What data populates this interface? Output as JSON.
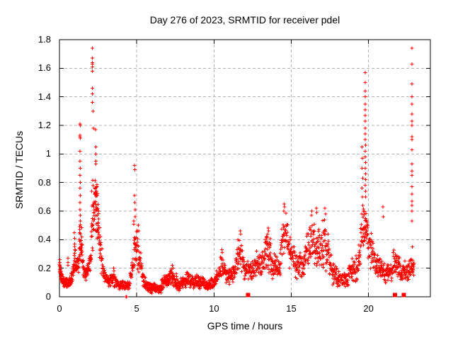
{
  "chart_data": {
    "type": "scatter",
    "title": "Day 276 of 2023, SRMTID for receiver pdel",
    "xlabel": "GPS time / hours",
    "ylabel": "SRMTID / TECUs",
    "xlim": [
      0,
      24
    ],
    "ylim": [
      0,
      1.8
    ],
    "xticks": [
      0,
      5,
      10,
      15,
      20
    ],
    "xtick_labels": [
      "0",
      "5",
      "10",
      "15",
      "20"
    ],
    "yticks": [
      0,
      0.2,
      0.4,
      0.6,
      0.8,
      1.0,
      1.2,
      1.4,
      1.6,
      1.8
    ],
    "ytick_labels": [
      "0",
      "0.2",
      "0.4",
      "0.6",
      "0.8",
      "1",
      "1.2",
      "1.4",
      "1.6",
      "1.8"
    ],
    "grid": true,
    "legend_position": "none",
    "marker": "plus",
    "marker_color": "#ff0000",
    "axis_color": "#000000",
    "grid_color": "#b3b3b3",
    "background_color": "#ffffff",
    "key_points": [
      [
        0.02,
        0.26
      ],
      [
        0.03,
        0.24
      ],
      [
        0.02,
        0.22
      ],
      [
        0.55,
        0.27
      ],
      [
        0.56,
        0.24
      ],
      [
        0.54,
        0.22
      ],
      [
        0.97,
        0.45
      ],
      [
        0.98,
        0.41
      ],
      [
        0.99,
        0.37
      ],
      [
        1.0,
        0.33
      ],
      [
        0.97,
        0.29
      ],
      [
        1.01,
        0.27
      ],
      [
        1.33,
        1.21
      ],
      [
        1.345,
        1.2
      ],
      [
        1.335,
        1.13
      ],
      [
        1.33,
        1.12
      ],
      [
        1.34,
        1.11
      ],
      [
        1.335,
        1.02
      ],
      [
        1.33,
        0.95
      ],
      [
        1.34,
        0.9
      ],
      [
        1.335,
        0.85
      ],
      [
        1.34,
        0.8
      ],
      [
        1.33,
        0.76
      ],
      [
        1.34,
        0.71
      ],
      [
        1.335,
        0.66
      ],
      [
        1.33,
        0.61
      ],
      [
        1.34,
        0.57
      ],
      [
        1.345,
        0.53
      ],
      [
        1.31,
        0.47
      ],
      [
        1.36,
        0.44
      ],
      [
        2.12,
        1.74
      ],
      [
        2.13,
        1.67
      ],
      [
        2.125,
        1.64
      ],
      [
        2.135,
        1.63
      ],
      [
        2.12,
        1.61
      ],
      [
        2.13,
        1.58
      ],
      [
        2.14,
        1.46
      ],
      [
        2.13,
        1.42
      ],
      [
        2.12,
        1.36
      ],
      [
        2.17,
        1.3
      ],
      [
        2.2,
        1.18
      ],
      [
        2.34,
        1.17
      ],
      [
        2.35,
        1.05
      ],
      [
        2.36,
        1.0
      ],
      [
        2.35,
        0.95
      ],
      [
        2.37,
        0.93
      ],
      [
        3.5,
        0.2
      ],
      [
        3.52,
        0.18
      ],
      [
        4.3,
        0.0
      ],
      [
        4.35,
        0.0
      ],
      [
        4.86,
        0.92
      ],
      [
        4.87,
        0.89
      ],
      [
        4.86,
        0.71
      ],
      [
        4.88,
        0.66
      ],
      [
        4.9,
        0.61
      ],
      [
        4.91,
        0.56
      ],
      [
        5.1,
        0.5
      ],
      [
        5.13,
        0.46
      ],
      [
        7.3,
        0.22
      ],
      [
        7.35,
        0.2
      ],
      [
        10.5,
        0.33
      ],
      [
        10.53,
        0.31
      ],
      [
        11.55,
        0.4
      ],
      [
        11.7,
        0.46
      ],
      [
        11.73,
        0.44
      ],
      [
        12.75,
        0.32
      ],
      [
        13.5,
        0.48
      ],
      [
        13.53,
        0.46
      ],
      [
        13.47,
        0.44
      ],
      [
        13.9,
        0.3
      ],
      [
        14.55,
        0.65
      ],
      [
        14.57,
        0.63
      ],
      [
        14.53,
        0.6
      ],
      [
        16.3,
        0.57
      ],
      [
        16.33,
        0.6
      ],
      [
        16.62,
        0.62
      ],
      [
        16.65,
        0.59
      ],
      [
        17.18,
        0.62
      ],
      [
        17.22,
        0.58
      ],
      [
        19.58,
        1.05
      ],
      [
        19.6,
        0.97
      ],
      [
        19.57,
        0.9
      ],
      [
        19.62,
        0.83
      ],
      [
        19.59,
        0.76
      ],
      [
        19.61,
        0.7
      ],
      [
        19.63,
        0.64
      ],
      [
        19.55,
        0.58
      ],
      [
        19.78,
        1.57
      ],
      [
        19.79,
        1.5
      ],
      [
        19.785,
        1.44
      ],
      [
        19.78,
        1.4
      ],
      [
        19.79,
        1.35
      ],
      [
        19.785,
        1.31
      ],
      [
        19.78,
        1.27
      ],
      [
        19.79,
        1.23
      ],
      [
        19.785,
        1.18
      ],
      [
        19.78,
        1.14
      ],
      [
        19.79,
        1.1
      ],
      [
        19.8,
        1.06
      ],
      [
        19.785,
        1.02
      ],
      [
        19.79,
        0.98
      ],
      [
        19.8,
        0.94
      ],
      [
        19.79,
        0.9
      ],
      [
        19.8,
        0.86
      ],
      [
        19.81,
        0.82
      ],
      [
        19.79,
        0.78
      ],
      [
        19.8,
        0.74
      ],
      [
        19.81,
        0.7
      ],
      [
        20.92,
        0.63
      ],
      [
        20.95,
        0.56
      ],
      [
        22.8,
        1.74
      ],
      [
        22.81,
        1.63
      ],
      [
        22.8,
        1.49
      ],
      [
        22.81,
        1.4
      ],
      [
        22.8,
        1.35
      ],
      [
        22.81,
        1.28
      ],
      [
        22.8,
        1.23
      ],
      [
        22.815,
        1.2
      ],
      [
        22.8,
        1.12
      ],
      [
        22.81,
        1.1
      ],
      [
        22.8,
        1.03
      ],
      [
        22.81,
        0.93
      ],
      [
        22.8,
        0.88
      ],
      [
        22.82,
        0.85
      ],
      [
        22.8,
        0.77
      ],
      [
        22.81,
        0.72
      ],
      [
        22.8,
        0.67
      ],
      [
        22.82,
        0.64
      ],
      [
        22.8,
        0.6
      ],
      [
        22.81,
        0.53
      ],
      [
        22.83,
        0.35
      ]
    ],
    "zero_axis_squares_hours": [
      12.2,
      21.72,
      22.28
    ],
    "bands_format": "[t_start,t_end,count,y_lo_at_start,y_hi_at_start,y_lo_at_end,y_hi_at_end]",
    "bands": [
      [
        0.0,
        0.15,
        22,
        0.14,
        0.27,
        0.1,
        0.2
      ],
      [
        0.15,
        0.45,
        40,
        0.06,
        0.16,
        0.06,
        0.13
      ],
      [
        0.45,
        0.75,
        35,
        0.06,
        0.14,
        0.07,
        0.15
      ],
      [
        0.75,
        0.95,
        24,
        0.08,
        0.16,
        0.12,
        0.28
      ],
      [
        0.95,
        1.1,
        18,
        0.12,
        0.4,
        0.14,
        0.3
      ],
      [
        1.1,
        1.28,
        16,
        0.12,
        0.26,
        0.16,
        0.38
      ],
      [
        1.28,
        1.48,
        30,
        0.22,
        0.55,
        0.22,
        0.48
      ],
      [
        1.48,
        1.75,
        25,
        0.12,
        0.35,
        0.1,
        0.2
      ],
      [
        1.75,
        2.05,
        28,
        0.1,
        0.2,
        0.16,
        0.4
      ],
      [
        2.05,
        2.3,
        32,
        0.25,
        0.75,
        0.4,
        0.95
      ],
      [
        2.3,
        2.55,
        46,
        0.35,
        0.92,
        0.3,
        0.75
      ],
      [
        2.55,
        2.8,
        26,
        0.18,
        0.55,
        0.14,
        0.32
      ],
      [
        2.8,
        3.1,
        28,
        0.09,
        0.26,
        0.07,
        0.16
      ],
      [
        3.1,
        3.45,
        32,
        0.06,
        0.14,
        0.07,
        0.2
      ],
      [
        3.45,
        3.8,
        32,
        0.06,
        0.19,
        0.05,
        0.13
      ],
      [
        3.8,
        4.55,
        65,
        0.04,
        0.12,
        0.04,
        0.12
      ],
      [
        4.55,
        4.8,
        20,
        0.06,
        0.16,
        0.14,
        0.35
      ],
      [
        4.8,
        5.05,
        30,
        0.18,
        0.55,
        0.2,
        0.5
      ],
      [
        5.05,
        5.35,
        26,
        0.14,
        0.5,
        0.1,
        0.26
      ],
      [
        5.35,
        5.7,
        30,
        0.06,
        0.22,
        0.04,
        0.12
      ],
      [
        5.7,
        6.6,
        88,
        0.02,
        0.1,
        0.02,
        0.09
      ],
      [
        6.6,
        7.1,
        48,
        0.04,
        0.13,
        0.08,
        0.21
      ],
      [
        7.1,
        7.6,
        48,
        0.07,
        0.22,
        0.05,
        0.16
      ],
      [
        7.6,
        8.2,
        56,
        0.04,
        0.13,
        0.05,
        0.15
      ],
      [
        8.2,
        9.0,
        72,
        0.06,
        0.19,
        0.05,
        0.17
      ],
      [
        9.0,
        9.6,
        52,
        0.05,
        0.16,
        0.04,
        0.12
      ],
      [
        9.6,
        10.15,
        48,
        0.04,
        0.12,
        0.06,
        0.17
      ],
      [
        10.15,
        10.5,
        28,
        0.08,
        0.18,
        0.1,
        0.32
      ],
      [
        10.5,
        10.85,
        28,
        0.1,
        0.32,
        0.08,
        0.2
      ],
      [
        10.85,
        11.4,
        46,
        0.08,
        0.22,
        0.1,
        0.24
      ],
      [
        11.4,
        11.7,
        24,
        0.12,
        0.32,
        0.15,
        0.45
      ],
      [
        11.7,
        11.95,
        20,
        0.15,
        0.45,
        0.12,
        0.3
      ],
      [
        11.95,
        12.45,
        40,
        0.08,
        0.28,
        0.1,
        0.24
      ],
      [
        12.45,
        13.25,
        62,
        0.1,
        0.26,
        0.14,
        0.34
      ],
      [
        13.25,
        13.7,
        40,
        0.15,
        0.47,
        0.15,
        0.42
      ],
      [
        13.7,
        14.3,
        50,
        0.12,
        0.32,
        0.14,
        0.27
      ],
      [
        14.3,
        14.75,
        36,
        0.18,
        0.5,
        0.3,
        0.64
      ],
      [
        14.75,
        15.25,
        40,
        0.18,
        0.55,
        0.15,
        0.35
      ],
      [
        15.25,
        15.85,
        48,
        0.12,
        0.3,
        0.13,
        0.32
      ],
      [
        15.85,
        16.5,
        54,
        0.15,
        0.42,
        0.25,
        0.62
      ],
      [
        16.5,
        17.0,
        44,
        0.15,
        0.58,
        0.18,
        0.45
      ],
      [
        17.0,
        17.45,
        38,
        0.15,
        0.6,
        0.12,
        0.5
      ],
      [
        17.45,
        18.0,
        44,
        0.08,
        0.35,
        0.06,
        0.2
      ],
      [
        18.0,
        18.7,
        56,
        0.05,
        0.18,
        0.06,
        0.18
      ],
      [
        18.7,
        19.3,
        48,
        0.08,
        0.26,
        0.1,
        0.32
      ],
      [
        19.3,
        19.65,
        28,
        0.12,
        0.38,
        0.25,
        0.62
      ],
      [
        19.65,
        19.95,
        32,
        0.28,
        0.7,
        0.3,
        0.6
      ],
      [
        19.95,
        20.4,
        36,
        0.2,
        0.55,
        0.15,
        0.4
      ],
      [
        20.4,
        21.0,
        48,
        0.12,
        0.32,
        0.1,
        0.28
      ],
      [
        21.0,
        21.6,
        48,
        0.08,
        0.25,
        0.1,
        0.26
      ],
      [
        21.6,
        22.1,
        44,
        0.1,
        0.35,
        0.1,
        0.28
      ],
      [
        22.1,
        22.6,
        40,
        0.08,
        0.28,
        0.1,
        0.26
      ],
      [
        22.6,
        22.95,
        34,
        0.12,
        0.32,
        0.12,
        0.28
      ]
    ]
  }
}
